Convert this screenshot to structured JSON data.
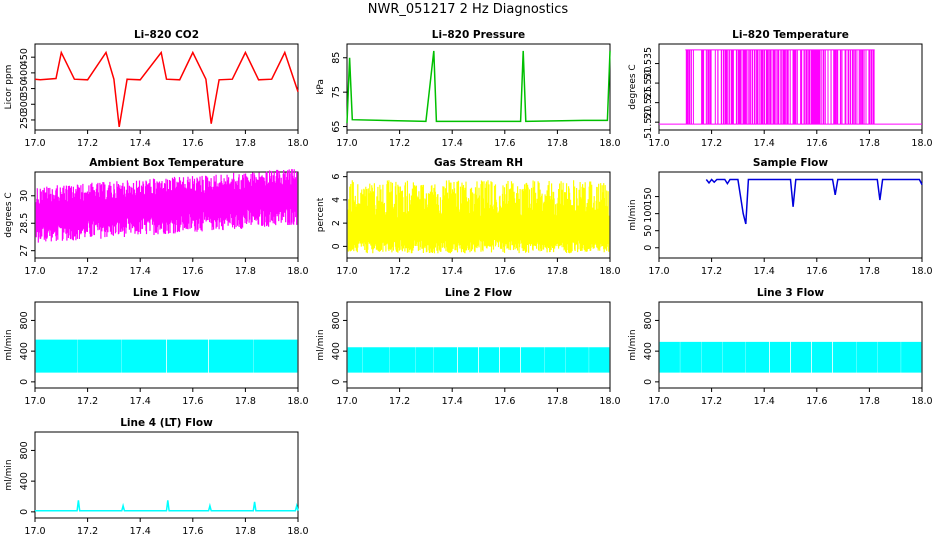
{
  "page": {
    "title": "NWR_051217  2 Hz Diagnostics"
  },
  "chart_data": [
    {
      "type": "line",
      "title": "Li–820 CO2",
      "ylabel": "Licor ppm",
      "color": "#ff0000",
      "xlim": [
        17.0,
        18.0
      ],
      "ylim": [
        218,
        492
      ],
      "xticks": [
        "17.0",
        "17.2",
        "17.4",
        "17.6",
        "17.8",
        "18.0"
      ],
      "yticks": [
        250,
        300,
        350,
        400,
        450
      ],
      "series": [
        {
          "x": [
            17.0,
            17.02,
            17.08,
            17.1,
            17.15,
            17.2,
            17.27,
            17.3,
            17.32,
            17.35,
            17.4,
            17.48,
            17.5,
            17.55,
            17.6,
            17.65,
            17.67,
            17.7,
            17.75,
            17.8,
            17.85,
            17.9,
            17.95,
            18.0
          ],
          "y": [
            380,
            378,
            382,
            465,
            380,
            378,
            465,
            380,
            228,
            380,
            378,
            465,
            380,
            378,
            465,
            380,
            238,
            378,
            380,
            465,
            378,
            380,
            465,
            340
          ]
        }
      ]
    },
    {
      "type": "line",
      "title": "Li–820 Pressure",
      "ylabel": "kPa",
      "color": "#00c000",
      "xlim": [
        17.0,
        18.0
      ],
      "ylim": [
        64,
        89
      ],
      "xticks": [
        "17.0",
        "17.2",
        "17.4",
        "17.6",
        "17.8",
        "18.0"
      ],
      "yticks": [
        65,
        75,
        85
      ],
      "series": [
        {
          "x": [
            17.0,
            17.01,
            17.02,
            17.3,
            17.33,
            17.34,
            17.5,
            17.66,
            17.67,
            17.68,
            17.9,
            17.99,
            18.0
          ],
          "y": [
            66,
            85,
            67,
            66.5,
            87,
            66.5,
            66.5,
            66.5,
            87,
            66.5,
            66.8,
            66.8,
            87
          ]
        }
      ]
    },
    {
      "type": "line",
      "title": "Li–820 Temperature",
      "ylabel": "degrees C",
      "color": "#ff00ff",
      "xlim": [
        17.0,
        18.0
      ],
      "ylim": [
        51.518,
        51.54
      ],
      "xticks": [
        "17.0",
        "17.2",
        "17.4",
        "17.6",
        "17.8",
        "18.0"
      ],
      "yticks": [
        51.52,
        51.525,
        51.53,
        51.535
      ],
      "series": [
        {
          "x": [
            17.0,
            17.05,
            17.1,
            17.13,
            17.16,
            17.2,
            17.25,
            17.3,
            17.35,
            17.4,
            17.45,
            17.5,
            17.55,
            17.6,
            17.65,
            17.7,
            17.75,
            17.8,
            17.85,
            17.9,
            18.0
          ],
          "y": [
            51.5195,
            51.5195,
            51.5385,
            51.5195,
            51.5385,
            51.5195,
            51.5385,
            51.5195,
            51.5385,
            51.5195,
            51.5385,
            51.5195,
            51.5385,
            51.5195,
            51.5385,
            51.5195,
            51.5385,
            51.5195,
            51.5195,
            51.5195,
            51.5195
          ]
        }
      ]
    },
    {
      "type": "line",
      "title": "Ambient Box Temperature",
      "ylabel": "degrees C",
      "color": "#ff00ff",
      "xlim": [
        17.0,
        18.0
      ],
      "ylim": [
        26.6,
        31.3
      ],
      "xticks": [
        "17.0",
        "17.2",
        "17.4",
        "17.6",
        "17.8",
        "18.0"
      ],
      "yticks": [
        27.0,
        28.5,
        30.0
      ],
      "series": [
        {
          "x": [
            17.0,
            17.1,
            17.2,
            17.3,
            17.4,
            17.5,
            17.6,
            17.7,
            17.8,
            17.9,
            18.0
          ],
          "y": [
            28.8,
            29.0,
            28.9,
            29.0,
            29.1,
            29.2,
            29.4,
            29.6,
            29.8,
            29.6,
            29.5
          ]
        }
      ]
    },
    {
      "type": "line",
      "title": "Gas Stream RH",
      "ylabel": "percent",
      "color": "#ffff00",
      "xlim": [
        17.0,
        18.0
      ],
      "ylim": [
        -1.0,
        6.4
      ],
      "xticks": [
        "17.0",
        "17.2",
        "17.4",
        "17.6",
        "17.8",
        "18.0"
      ],
      "yticks": [
        0,
        2,
        4,
        6
      ],
      "series": [
        {
          "x": [
            17.0,
            17.1,
            17.2,
            17.3,
            17.4,
            17.5,
            17.6,
            17.7,
            17.8,
            17.9,
            18.0
          ],
          "y": [
            1.5,
            1.4,
            1.5,
            1.3,
            1.4,
            1.5,
            1.4,
            1.3,
            1.4,
            1.5,
            1.4
          ]
        }
      ]
    },
    {
      "type": "line",
      "title": "Sample Flow",
      "ylabel": "ml/min",
      "color": "#0000dd",
      "xlim": [
        17.0,
        18.0
      ],
      "ylim": [
        -30,
        222
      ],
      "xticks": [
        "17.0",
        "17.2",
        "17.4",
        "17.6",
        "17.8",
        "18.0"
      ],
      "yticks": [
        0,
        50,
        100,
        150
      ],
      "series": [
        {
          "x": [
            17.18,
            17.19,
            17.2,
            17.21,
            17.22,
            17.25,
            17.26,
            17.27,
            17.3,
            17.32,
            17.33,
            17.34,
            17.5,
            17.51,
            17.52,
            17.66,
            17.67,
            17.68,
            17.83,
            17.84,
            17.85,
            17.99,
            18.0
          ],
          "y": [
            200,
            190,
            200,
            192,
            200,
            200,
            188,
            200,
            200,
            100,
            70,
            200,
            200,
            120,
            200,
            200,
            155,
            200,
            200,
            140,
            200,
            200,
            185
          ]
        }
      ]
    },
    {
      "type": "line",
      "title": "Line 1 Flow",
      "ylabel": "ml/min",
      "color": "#00ffff",
      "xlim": [
        17.0,
        18.0
      ],
      "ylim": [
        -80,
        1040
      ],
      "xticks": [
        "17.0",
        "17.2",
        "17.4",
        "17.6",
        "17.8",
        "18.0"
      ],
      "yticks": [
        0,
        400,
        800
      ],
      "series": [
        {
          "x": [
            17.0,
            17.1,
            17.2,
            17.3,
            17.4,
            17.5,
            17.6,
            17.7,
            17.8,
            17.9,
            18.0
          ],
          "y": [
            520,
            515,
            520,
            518,
            520,
            515,
            520,
            518,
            520,
            515,
            520
          ]
        }
      ]
    },
    {
      "type": "line",
      "title": "Line 2 Flow",
      "ylabel": "ml/min",
      "color": "#00ffff",
      "xlim": [
        17.0,
        18.0
      ],
      "ylim": [
        -80,
        1040
      ],
      "xticks": [
        "17.0",
        "17.2",
        "17.4",
        "17.6",
        "17.8",
        "18.0"
      ],
      "yticks": [
        0,
        400,
        800
      ],
      "series": [
        {
          "x": [
            17.0,
            17.1,
            17.2,
            17.3,
            17.4,
            17.5,
            17.6,
            17.7,
            17.8,
            17.9,
            18.0
          ],
          "y": [
            440,
            435,
            440,
            438,
            440,
            435,
            440,
            438,
            440,
            435,
            440
          ]
        }
      ]
    },
    {
      "type": "line",
      "title": "Line 3 Flow",
      "ylabel": "ml/min",
      "color": "#00ffff",
      "xlim": [
        17.0,
        18.0
      ],
      "ylim": [
        -80,
        1040
      ],
      "xticks": [
        "17.0",
        "17.2",
        "17.4",
        "17.6",
        "17.8",
        "18.0"
      ],
      "yticks": [
        0,
        400,
        800
      ],
      "series": [
        {
          "x": [
            17.0,
            17.1,
            17.2,
            17.3,
            17.4,
            17.5,
            17.6,
            17.7,
            17.8,
            17.9,
            18.0
          ],
          "y": [
            510,
            505,
            510,
            508,
            510,
            505,
            510,
            508,
            510,
            505,
            510
          ]
        }
      ]
    },
    {
      "type": "line",
      "title": "Line 4 (LT) Flow",
      "ylabel": "ml/min",
      "color": "#00ffff",
      "xlim": [
        17.0,
        18.0
      ],
      "ylim": [
        -80,
        1040
      ],
      "xticks": [
        "17.0",
        "17.2",
        "17.4",
        "17.6",
        "17.8",
        "18.0"
      ],
      "yticks": [
        0,
        400,
        800
      ],
      "series": [
        {
          "x": [
            17.0,
            17.16,
            17.165,
            17.17,
            17.33,
            17.335,
            17.34,
            17.5,
            17.505,
            17.51,
            17.66,
            17.665,
            17.67,
            17.83,
            17.835,
            17.84,
            17.99,
            17.995,
            18.0
          ],
          "y": [
            15,
            15,
            150,
            15,
            15,
            80,
            15,
            15,
            150,
            15,
            15,
            80,
            15,
            15,
            130,
            15,
            15,
            80,
            15
          ]
        }
      ]
    }
  ]
}
